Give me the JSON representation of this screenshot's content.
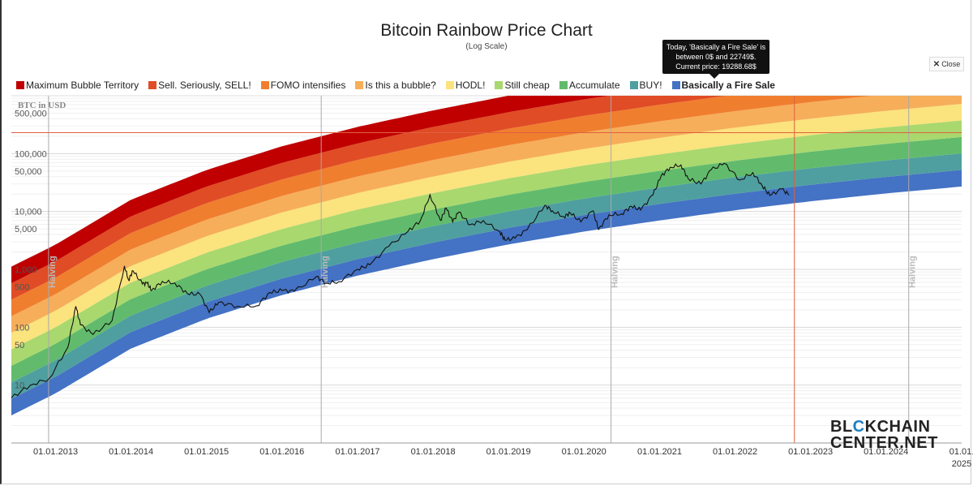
{
  "title": "Bitcoin Rainbow Price Chart",
  "subtitle": "(Log Scale)",
  "tooltip": {
    "line1": "Today, 'Basically a Fire Sale' is",
    "line2": "between 0$ and 22749$.",
    "line3": "Current price: 19288.68$"
  },
  "close_button": {
    "icon": "close-icon",
    "label": "Close"
  },
  "brand": {
    "line1_a": "BL",
    "line1_b": "C",
    "line1_c": "KCHAIN",
    "line2": "CENTER.NET"
  },
  "legend": [
    {
      "label": "Maximum Bubble Territory",
      "color": "#c00000"
    },
    {
      "label": "Sell. Seriously, SELL!",
      "color": "#e04c25"
    },
    {
      "label": "FOMO intensifies",
      "color": "#f07e2f"
    },
    {
      "label": "Is this a bubble?",
      "color": "#f6ae5a"
    },
    {
      "label": "HODL!",
      "color": "#fbe37e"
    },
    {
      "label": "Still cheap",
      "color": "#a9d86e"
    },
    {
      "label": "Accumulate",
      "color": "#62bb6c"
    },
    {
      "label": "BUY!",
      "color": "#4f9fa0"
    },
    {
      "label": "Basically a Fire Sale",
      "color": "#4472c4",
      "active": true
    }
  ],
  "chart_data": {
    "type": "line",
    "title": "Bitcoin Rainbow Price Chart",
    "subtitle": "(Log Scale)",
    "y_scale": "log",
    "ylabel": "BTC in USD",
    "ylim": [
      1,
      1000000
    ],
    "y_ticks": [
      {
        "value": 500000,
        "label": "500,000"
      },
      {
        "value": 100000,
        "label": "100,000"
      },
      {
        "value": 50000,
        "label": "50,000"
      },
      {
        "value": 10000,
        "label": "10,000"
      },
      {
        "value": 5000,
        "label": "5,000"
      },
      {
        "value": 1000,
        "label": "1,000"
      },
      {
        "value": 500,
        "label": "500"
      },
      {
        "value": 100,
        "label": "100"
      },
      {
        "value": 50,
        "label": "50"
      },
      {
        "value": 10,
        "label": "10"
      }
    ],
    "xlim": [
      "2012-06-01",
      "2025-01-01"
    ],
    "x_ticks": [
      {
        "date": "2013-01-01",
        "label": "01.01.2013"
      },
      {
        "date": "2014-01-01",
        "label": "01.01.2014"
      },
      {
        "date": "2015-01-01",
        "label": "01.01.2015"
      },
      {
        "date": "2016-01-01",
        "label": "01.01.2016"
      },
      {
        "date": "2017-01-01",
        "label": "01.01.2017"
      },
      {
        "date": "2018-01-01",
        "label": "01.01.2018"
      },
      {
        "date": "2019-01-01",
        "label": "01.01.2019"
      },
      {
        "date": "2020-01-01",
        "label": "01.01.2020"
      },
      {
        "date": "2021-01-01",
        "label": "01.01.2021"
      },
      {
        "date": "2022-01-01",
        "label": "01.01.2022"
      },
      {
        "date": "2023-01-01",
        "label": "01.01.2023"
      },
      {
        "date": "2024-01-01",
        "label": "01.01.2024"
      },
      {
        "date": "2025-01-01",
        "label": "01.01.\n2025"
      }
    ],
    "halvings": [
      {
        "date": "2012-11-28",
        "label": "Halving"
      },
      {
        "date": "2016-07-09",
        "label": "Halving"
      },
      {
        "date": "2020-05-11",
        "label": "Halving"
      },
      {
        "date": "2024-04-20",
        "label": "Halving"
      }
    ],
    "today_line": {
      "date": "2022-10-15",
      "color": "#e06040"
    },
    "hover_price_line": {
      "value": 230000,
      "color": "#e06040"
    },
    "bands": {
      "start_date": "2012-06-01",
      "end_date": "2025-01-01",
      "lower_edge": [
        [
          "2012-06-01",
          3
        ],
        [
          "2013-01-01",
          7.2
        ],
        [
          "2014-01-01",
          43
        ],
        [
          "2015-01-01",
          140
        ],
        [
          "2016-01-01",
          360
        ],
        [
          "2017-01-01",
          780
        ],
        [
          "2018-01-01",
          1500
        ],
        [
          "2019-01-01",
          2700
        ],
        [
          "2020-01-01",
          4500
        ],
        [
          "2021-01-01",
          7000
        ],
        [
          "2022-01-01",
          10500
        ],
        [
          "2023-01-01",
          15000
        ],
        [
          "2024-01-01",
          20500
        ],
        [
          "2025-01-01",
          27000
        ]
      ],
      "band_multiplier": 1.93,
      "count": 9
    },
    "series": [
      {
        "name": "BTC price",
        "color": "#111111",
        "points": [
          [
            "2012-06-01",
            6
          ],
          [
            "2012-09-01",
            10
          ],
          [
            "2012-12-01",
            13
          ],
          [
            "2013-03-01",
            45
          ],
          [
            "2013-04-09",
            230
          ],
          [
            "2013-05-01",
            110
          ],
          [
            "2013-07-01",
            75
          ],
          [
            "2013-10-01",
            130
          ],
          [
            "2013-11-30",
            1150
          ],
          [
            "2013-12-20",
            650
          ],
          [
            "2014-01-10",
            950
          ],
          [
            "2014-02-25",
            560
          ],
          [
            "2014-03-20",
            580
          ],
          [
            "2014-04-10",
            430
          ],
          [
            "2014-06-01",
            620
          ],
          [
            "2014-08-01",
            580
          ],
          [
            "2014-10-01",
            380
          ],
          [
            "2014-12-01",
            370
          ],
          [
            "2015-01-14",
            180
          ],
          [
            "2015-03-01",
            270
          ],
          [
            "2015-06-01",
            230
          ],
          [
            "2015-09-01",
            235
          ],
          [
            "2015-11-04",
            400
          ],
          [
            "2016-01-01",
            430
          ],
          [
            "2016-03-01",
            420
          ],
          [
            "2016-06-16",
            750
          ],
          [
            "2016-08-01",
            580
          ],
          [
            "2016-10-01",
            610
          ],
          [
            "2017-01-01",
            1000
          ],
          [
            "2017-03-01",
            1200
          ],
          [
            "2017-06-01",
            2500
          ],
          [
            "2017-09-01",
            4500
          ],
          [
            "2017-11-01",
            7000
          ],
          [
            "2017-12-17",
            19500
          ],
          [
            "2018-02-06",
            7000
          ],
          [
            "2018-03-05",
            11500
          ],
          [
            "2018-04-06",
            6600
          ],
          [
            "2018-05-05",
            9800
          ],
          [
            "2018-06-29",
            5900
          ],
          [
            "2018-09-01",
            7000
          ],
          [
            "2018-11-20",
            4500
          ],
          [
            "2018-12-15",
            3200
          ],
          [
            "2019-02-01",
            3450
          ],
          [
            "2019-04-02",
            4900
          ],
          [
            "2019-06-26",
            12800
          ],
          [
            "2019-08-01",
            10300
          ],
          [
            "2019-09-26",
            8100
          ],
          [
            "2019-10-26",
            9500
          ],
          [
            "2019-12-17",
            6600
          ],
          [
            "2020-02-13",
            10300
          ],
          [
            "2020-03-12",
            4900
          ],
          [
            "2020-05-01",
            8800
          ],
          [
            "2020-07-01",
            9100
          ],
          [
            "2020-08-17",
            12300
          ],
          [
            "2020-10-01",
            10600
          ],
          [
            "2020-11-30",
            19500
          ],
          [
            "2021-01-08",
            41000
          ],
          [
            "2021-02-21",
            58000
          ],
          [
            "2021-04-14",
            64000
          ],
          [
            "2021-05-19",
            37000
          ],
          [
            "2021-07-20",
            29800
          ],
          [
            "2021-09-06",
            52000
          ],
          [
            "2021-11-10",
            68000
          ],
          [
            "2022-01-24",
            35000
          ],
          [
            "2022-03-28",
            47000
          ],
          [
            "2022-05-12",
            28000
          ],
          [
            "2022-06-18",
            18900
          ],
          [
            "2022-08-15",
            24300
          ],
          [
            "2022-09-20",
            19288
          ]
        ]
      }
    ],
    "grid": true,
    "legend_position": "top"
  }
}
